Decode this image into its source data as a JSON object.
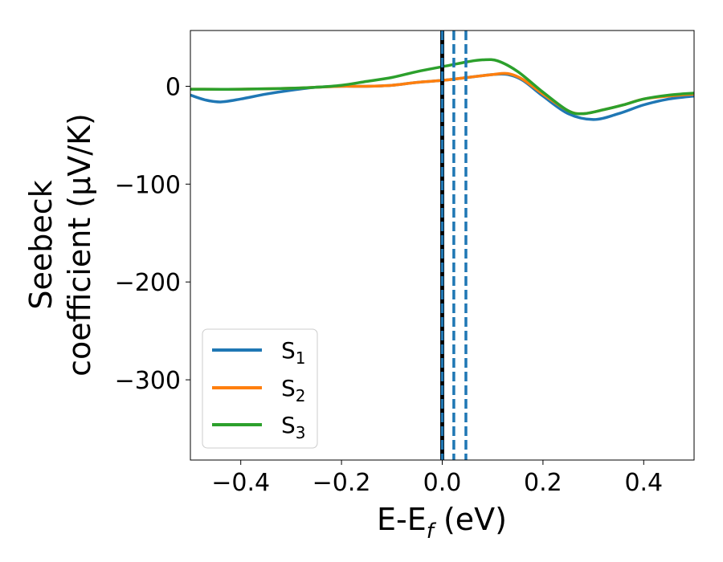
{
  "chart_data": {
    "type": "line",
    "xlabel": "E-E",
    "xlabel_subscript": "f",
    "xlabel_unit": " (eV)",
    "ylabel_line1": "Seebeck",
    "ylabel_line2": "coefficient  (μV/K)",
    "xlim": [
      -0.5,
      0.5
    ],
    "ylim": [
      -382,
      57
    ],
    "xticks": [
      -0.4,
      -0.2,
      0.0,
      0.2,
      0.4
    ],
    "xtick_labels": [
      "−0.4",
      "−0.2",
      "0.0",
      "0.2",
      "0.4"
    ],
    "yticks": [
      0,
      -100,
      -200,
      -300
    ],
    "ytick_labels": [
      "0",
      "−100",
      "−200",
      "−300"
    ],
    "grid": false,
    "legend_position": "lower-left",
    "series": [
      {
        "name": "S1",
        "label_main": "S",
        "label_sub": "1",
        "color": "#1f77b4",
        "points": [
          [
            -0.5,
            -9
          ],
          [
            -0.47,
            -14
          ],
          [
            -0.44,
            -16
          ],
          [
            -0.4,
            -13
          ],
          [
            -0.35,
            -8
          ],
          [
            -0.3,
            -4
          ],
          [
            -0.25,
            -1
          ],
          [
            -0.2,
            0
          ],
          [
            -0.15,
            0
          ],
          [
            -0.1,
            1
          ],
          [
            -0.05,
            4
          ],
          [
            0.0,
            6
          ],
          [
            0.05,
            9
          ],
          [
            0.1,
            12
          ],
          [
            0.13,
            12
          ],
          [
            0.16,
            6
          ],
          [
            0.2,
            -10
          ],
          [
            0.25,
            -28
          ],
          [
            0.3,
            -34
          ],
          [
            0.35,
            -28
          ],
          [
            0.4,
            -19
          ],
          [
            0.45,
            -13
          ],
          [
            0.5,
            -10
          ]
        ]
      },
      {
        "name": "S2",
        "label_main": "S",
        "label_sub": "2",
        "color": "#ff7f0e",
        "points": [
          [
            -0.5,
            -3
          ],
          [
            -0.4,
            -3
          ],
          [
            -0.3,
            -2
          ],
          [
            -0.25,
            -1
          ],
          [
            -0.2,
            0
          ],
          [
            -0.15,
            0
          ],
          [
            -0.1,
            1
          ],
          [
            -0.05,
            4
          ],
          [
            0.0,
            6
          ],
          [
            0.05,
            9
          ],
          [
            0.1,
            12
          ],
          [
            0.13,
            13
          ],
          [
            0.16,
            7
          ],
          [
            0.2,
            -8
          ],
          [
            0.25,
            -25
          ],
          [
            0.28,
            -28
          ],
          [
            0.32,
            -24
          ],
          [
            0.36,
            -19
          ],
          [
            0.4,
            -13
          ],
          [
            0.45,
            -10
          ],
          [
            0.5,
            -8
          ]
        ]
      },
      {
        "name": "S3",
        "label_main": "S",
        "label_sub": "3",
        "color": "#2ca02c",
        "points": [
          [
            -0.5,
            -3
          ],
          [
            -0.4,
            -3
          ],
          [
            -0.3,
            -2
          ],
          [
            -0.25,
            -1
          ],
          [
            -0.2,
            1
          ],
          [
            -0.15,
            5
          ],
          [
            -0.1,
            9
          ],
          [
            -0.05,
            15
          ],
          [
            0.0,
            20
          ],
          [
            0.05,
            25
          ],
          [
            0.08,
            27
          ],
          [
            0.11,
            26
          ],
          [
            0.15,
            15
          ],
          [
            0.2,
            -6
          ],
          [
            0.25,
            -25
          ],
          [
            0.28,
            -28
          ],
          [
            0.32,
            -24
          ],
          [
            0.36,
            -19
          ],
          [
            0.4,
            -13
          ],
          [
            0.45,
            -9
          ],
          [
            0.5,
            -7
          ]
        ]
      }
    ],
    "vertical_lines": [
      {
        "x": 0.0,
        "style": "solid",
        "color": "#000000"
      },
      {
        "x": 0.0,
        "style": "dashed",
        "color": "#1f77b4"
      },
      {
        "x": 0.023,
        "style": "dashed",
        "color": "#1f77b4"
      },
      {
        "x": 0.047,
        "style": "dashed",
        "color": "#1f77b4"
      }
    ]
  }
}
